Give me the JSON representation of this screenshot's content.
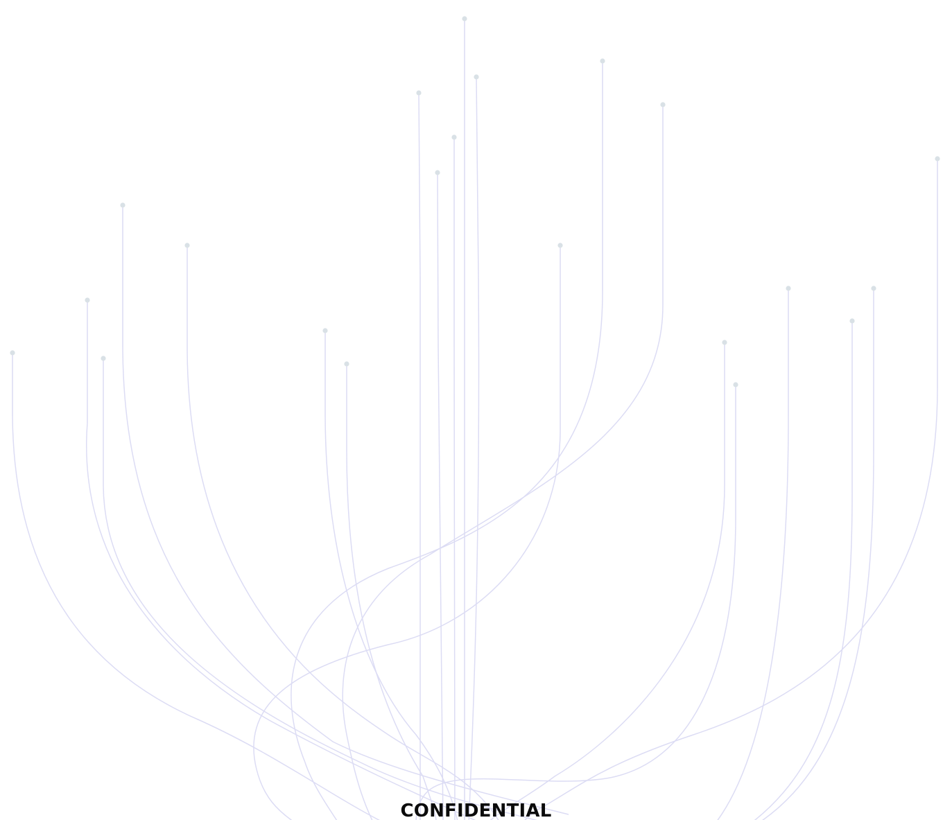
{
  "watermark": {
    "label": "CONFIDENTIAL"
  },
  "colors": {
    "background": "#ffffff",
    "strand": "#dcdcf4",
    "node": "#d9e1e6",
    "text": "#0b0b0b"
  }
}
